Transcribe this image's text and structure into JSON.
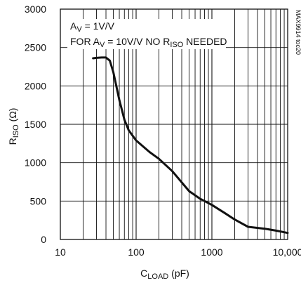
{
  "chart_data": {
    "type": "line",
    "xscale": "log",
    "xlim": [
      10,
      10000
    ],
    "ylim": [
      0,
      3000
    ],
    "grid": true,
    "ylabel": {
      "main": "R",
      "sub": "ISO",
      "unit": " (Ω)"
    },
    "xlabel": {
      "main": "C",
      "sub": "LOAD",
      "unit": " (pF)"
    },
    "x_tick_labels": [
      {
        "value": 10,
        "label": "10"
      },
      {
        "value": 100,
        "label": "100"
      },
      {
        "value": 1000,
        "label": "1000"
      },
      {
        "value": 10000,
        "label": "10,000"
      }
    ],
    "y_tick_labels": [
      {
        "value": 0,
        "label": "0"
      },
      {
        "value": 500,
        "label": "500"
      },
      {
        "value": 1000,
        "label": "1000"
      },
      {
        "value": 1500,
        "label": "1500"
      },
      {
        "value": 2000,
        "label": "2000"
      },
      {
        "value": 2500,
        "label": "2500"
      },
      {
        "value": 3000,
        "label": "3000"
      }
    ],
    "annotations": [
      {
        "parts": [
          {
            "t": "A"
          },
          {
            "t": "V",
            "sub": true
          },
          {
            "t": " = 1V/V"
          }
        ]
      },
      {
        "parts": [
          {
            "t": "FOR A"
          },
          {
            "t": "V",
            "sub": true
          },
          {
            "t": " = 10V/V NO R"
          },
          {
            "t": "ISO",
            "sub": true
          },
          {
            "t": " NEEDED"
          }
        ]
      }
    ],
    "side_label": "MAX9914 toc20",
    "series": [
      {
        "x": [
          27,
          30,
          35,
          40,
          45,
          50,
          60,
          70,
          80,
          100,
          150,
          200,
          300,
          500,
          700,
          1000,
          1500,
          2000,
          3000,
          5000,
          7000,
          10000
        ],
        "y": [
          2360,
          2365,
          2370,
          2370,
          2330,
          2180,
          1820,
          1560,
          1420,
          1290,
          1140,
          1050,
          890,
          630,
          530,
          450,
          340,
          260,
          165,
          140,
          115,
          85
        ]
      }
    ]
  }
}
